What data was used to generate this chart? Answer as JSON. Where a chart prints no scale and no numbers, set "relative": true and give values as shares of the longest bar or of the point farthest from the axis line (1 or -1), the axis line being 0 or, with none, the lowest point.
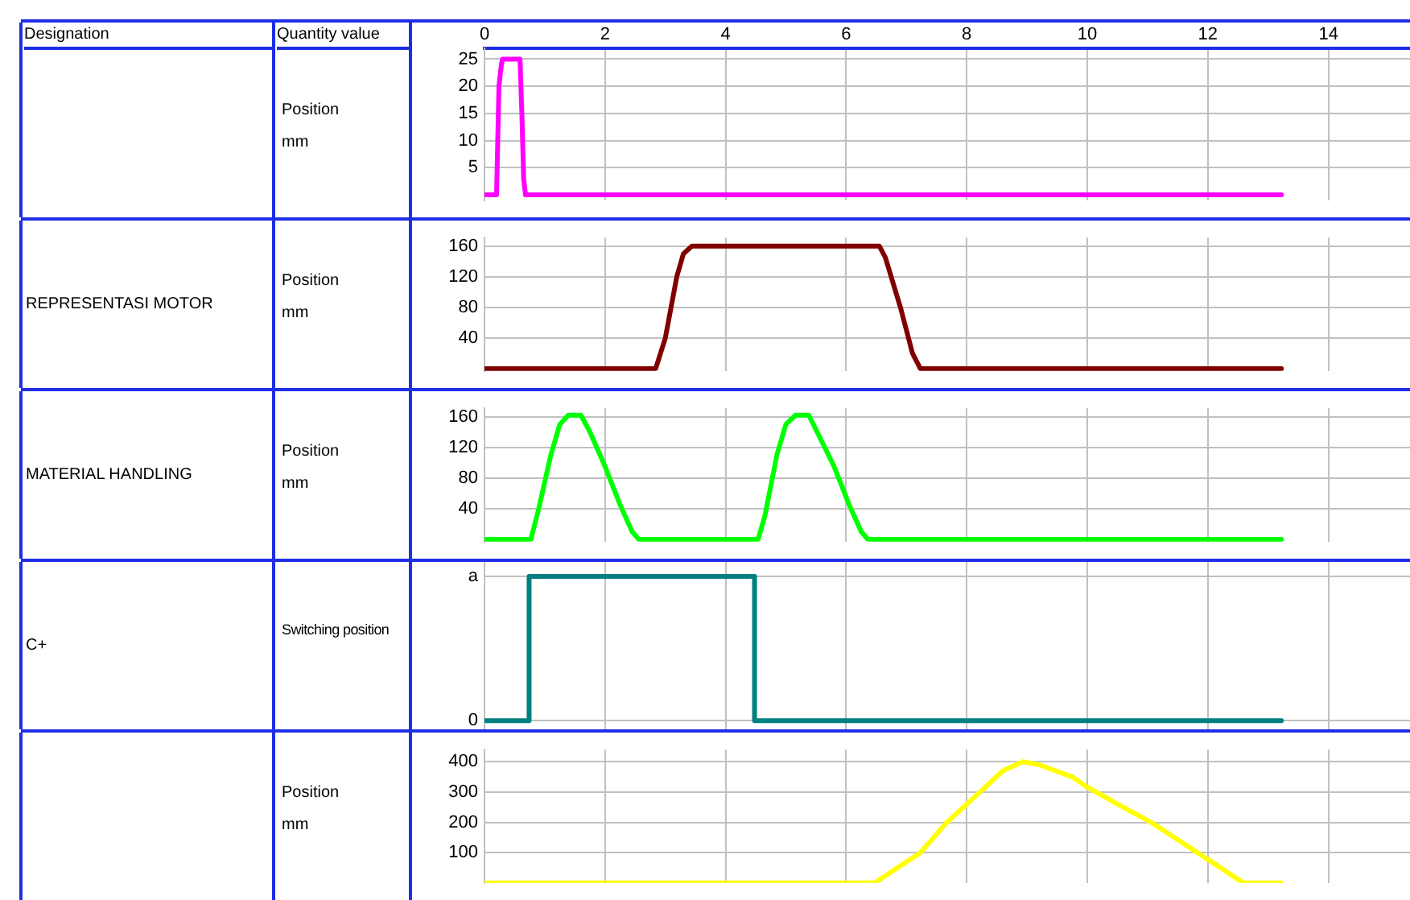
{
  "chart_data": [
    {
      "type": "line",
      "ylabel": "Position\nmm",
      "annotations": [
        "Designation",
        "Quantity value"
      ],
      "marker": "none",
      "grid": true,
      "x": [
        0,
        0.2,
        0.24,
        0.28,
        0.3,
        0.59,
        0.62,
        0.65,
        0.68,
        13.22
      ],
      "series": [
        {
          "color": "#ff00ff",
          "values": [
            0,
            0,
            20,
            24,
            25,
            25,
            15,
            3,
            0,
            0
          ]
        }
      ],
      "xlim": [
        0,
        15.7
      ],
      "xticks": [
        0,
        2,
        4,
        6,
        8,
        10,
        12,
        14
      ],
      "ylim": [
        -1,
        27
      ],
      "yticks": [
        5,
        10,
        15,
        20,
        25
      ]
    },
    {
      "type": "line",
      "annotations": [
        "REPRESENTASI MOTOR"
      ],
      "ylabel": "Position\nmm",
      "marker": "none",
      "grid": true,
      "tick_labels": "y",
      "x": [
        0,
        2.84,
        3.0,
        3.19,
        3.3,
        3.44,
        6.55,
        6.65,
        6.9,
        7.1,
        7.23,
        13.22
      ],
      "series": [
        {
          "color": "#800000",
          "values": [
            0,
            0,
            40,
            120,
            150,
            160,
            160,
            145,
            80,
            20,
            0,
            0
          ]
        }
      ],
      "xlim": [
        0,
        15.7
      ],
      "xticks": [
        0,
        2,
        4,
        6,
        8,
        10,
        12,
        14
      ],
      "ylim": [
        -3,
        171
      ],
      "yticks": [
        40,
        80,
        120,
        160
      ]
    },
    {
      "type": "line",
      "annotations": [
        "MATERIAL HANDLING"
      ],
      "ylabel": "Position\nmm",
      "marker": "none",
      "grid": true,
      "tick_labels": "y",
      "x": [
        0,
        0.77,
        0.9,
        1.1,
        1.25,
        1.39,
        1.6,
        1.75,
        2.0,
        2.25,
        2.45,
        2.56,
        4.54,
        4.65,
        4.85,
        5.0,
        5.16,
        5.38,
        5.55,
        5.8,
        6.05,
        6.25,
        6.36,
        13.22
      ],
      "series": [
        {
          "color": "#00ff00",
          "values": [
            0,
            0,
            40,
            110,
            150,
            162,
            162,
            140,
            95,
            45,
            10,
            0,
            0,
            30,
            110,
            150,
            162,
            162,
            135,
            95,
            45,
            10,
            0,
            0
          ]
        }
      ],
      "xlim": [
        0,
        15.7
      ],
      "xticks": [
        0,
        2,
        4,
        6,
        8,
        10,
        12,
        14
      ],
      "ylim": [
        -3,
        171
      ],
      "yticks": [
        40,
        80,
        120,
        160
      ]
    },
    {
      "type": "line",
      "annotations": [
        "C+",
        "a",
        "0"
      ],
      "ylabel": "Switching position",
      "marker": "none",
      "grid": true,
      "tick_labels": "y",
      "relative": true,
      "x": [
        0,
        0.74,
        0.74,
        4.48,
        4.48,
        13.22
      ],
      "series": [
        {
          "color": "#008080",
          "values": [
            0,
            0,
            1,
            1,
            0,
            0
          ]
        }
      ],
      "xlim": [
        0,
        15.7
      ],
      "xticks": [
        0,
        2,
        4,
        6,
        8,
        10,
        12,
        14
      ]
    },
    {
      "type": "line",
      "ylabel": "Position\nmm",
      "marker": "none",
      "grid": true,
      "tick_labels": "y",
      "x": [
        0,
        6.47,
        7.23,
        7.67,
        8.22,
        8.6,
        8.93,
        9.2,
        9.75,
        9.97,
        10.5,
        11.06,
        11.83,
        12.59,
        13.22
      ],
      "series": [
        {
          "color": "#ffff00",
          "values": [
            0,
            0,
            100,
            200,
            300,
            370,
            400,
            390,
            350,
            320,
            260,
            200,
            100,
            0,
            0
          ]
        }
      ],
      "xlim": [
        0,
        15.7
      ],
      "xticks": [
        0,
        2,
        4,
        6,
        8,
        10,
        12,
        14
      ],
      "ylim": [
        0,
        440
      ],
      "yticks": [
        100,
        200,
        300,
        400
      ]
    }
  ]
}
